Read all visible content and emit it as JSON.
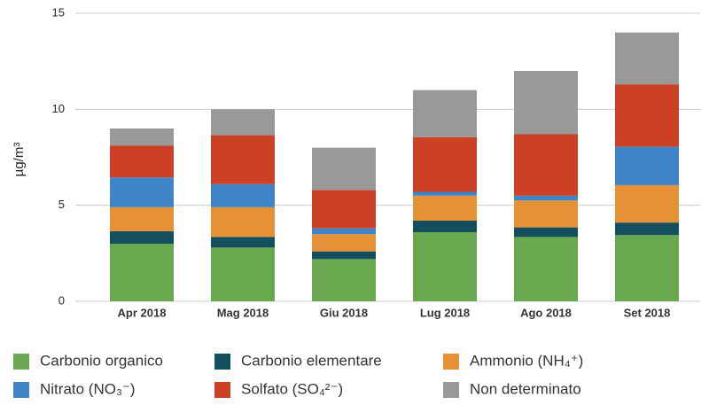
{
  "chart_data": {
    "type": "stacked_bar",
    "y_label": "µg/m³",
    "categories": [
      "Apr 2018",
      "Mag 2018",
      "Giu 2018",
      "Lug 2018",
      "Ago 2018",
      "Set 2018"
    ],
    "series": [
      {
        "name": "Carbonio organico",
        "color": "#6aa84f",
        "values": [
          3.0,
          2.8,
          2.2,
          3.6,
          3.35,
          3.45
        ]
      },
      {
        "name": "Carbonio elementare",
        "color": "#134f5c",
        "values": [
          0.65,
          0.55,
          0.4,
          0.6,
          0.5,
          0.65
        ]
      },
      {
        "name": "Ammonio (NH₄⁺)",
        "color": "#e69138",
        "values": [
          1.25,
          1.55,
          0.9,
          1.3,
          1.4,
          1.95
        ]
      },
      {
        "name": "Nitrato (NO₃⁻)",
        "color": "#3d85c6",
        "values": [
          1.55,
          1.2,
          0.3,
          0.2,
          0.25,
          2.0
        ]
      },
      {
        "name": "Solfato (SO₄²⁻)",
        "color": "#cc4125",
        "values": [
          1.65,
          2.55,
          2.0,
          2.85,
          3.2,
          3.25
        ]
      },
      {
        "name": "Non determinato",
        "color": "#999999",
        "values": [
          0.9,
          1.35,
          2.2,
          2.45,
          3.3,
          2.7
        ]
      }
    ],
    "ylim": [
      0,
      15
    ],
    "yticks": [
      0,
      5,
      10,
      15
    ],
    "grid": true
  }
}
